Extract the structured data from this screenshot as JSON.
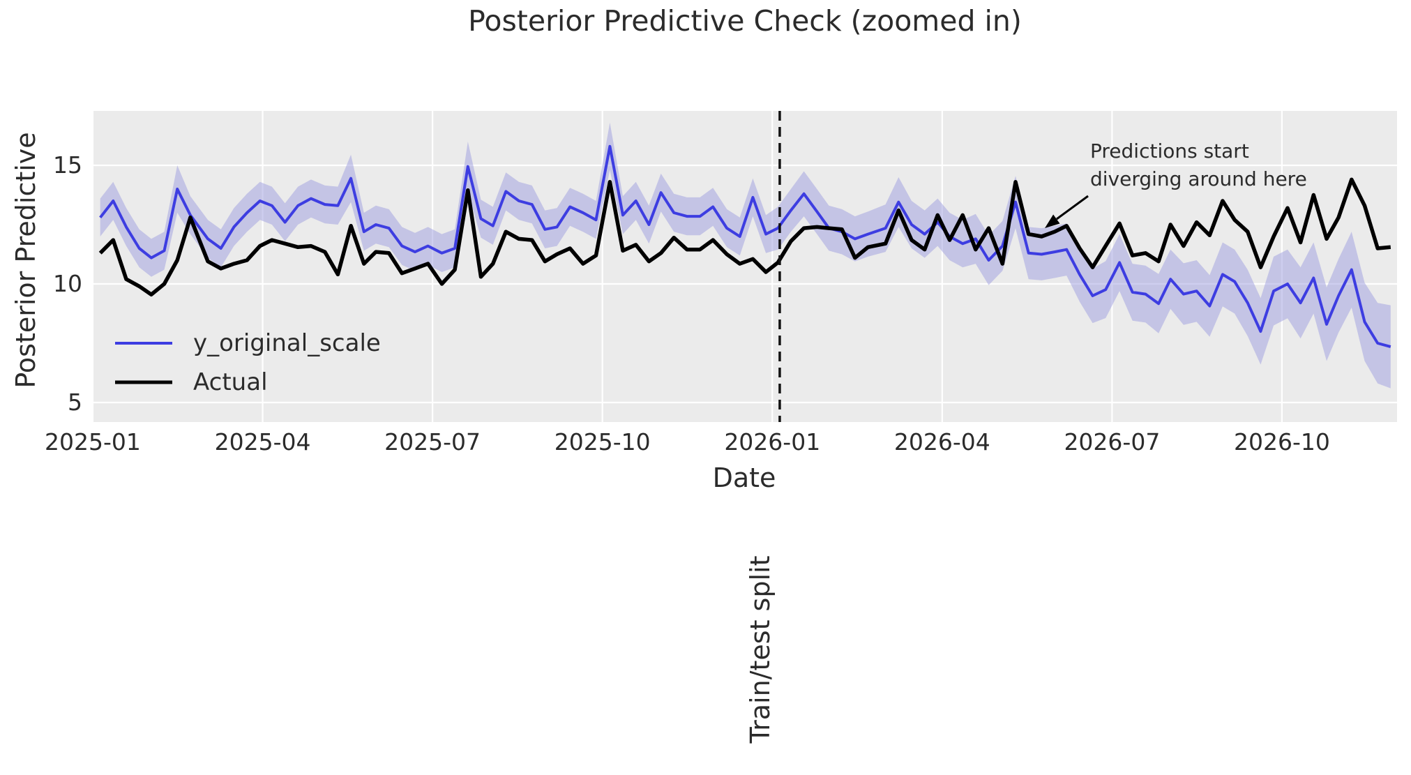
{
  "title": "Posterior Predictive Check (zoomed in)",
  "axes": {
    "xlabel": "Date",
    "ylabel": "Posterior Predictive"
  },
  "legend": {
    "items": [
      {
        "label": "y_original_scale",
        "color": "#3d3de1"
      },
      {
        "label": "Actual",
        "color": "#000000"
      }
    ]
  },
  "annotation": {
    "line1": "Predictions start",
    "line2": "diverging around here"
  },
  "split": {
    "label": "Train/test split",
    "date": "2026-01-05"
  },
  "colors": {
    "plot_background": "#ebebeb",
    "grid": "#ffffff",
    "band_fill": "#9e9ee0",
    "band_opacity": 0.5,
    "blue_line": "#3d3de1",
    "black_line": "#000000",
    "split_line": "#111111",
    "text": "#2b2b2b"
  },
  "chart_data": {
    "type": "line",
    "title": "Posterior Predictive Check (zoomed in)",
    "xlabel": "Date",
    "ylabel": "Posterior Predictive",
    "x_tick_labels": [
      "2025-01",
      "2025-04",
      "2025-07",
      "2025-10",
      "2026-01",
      "2026-04",
      "2026-07",
      "2026-10"
    ],
    "y_ticks": [
      5,
      10,
      15
    ],
    "ylim": [
      4.2,
      17.3
    ],
    "xlim": [
      "2025-01-01",
      "2026-12-02"
    ],
    "grid": true,
    "legend_position": "lower-left",
    "split_date": "2026-01-05",
    "dates": [
      "2025-01-05",
      "2025-01-12",
      "2025-01-19",
      "2025-01-26",
      "2025-02-02",
      "2025-02-09",
      "2025-02-16",
      "2025-02-23",
      "2025-03-02",
      "2025-03-09",
      "2025-03-16",
      "2025-03-23",
      "2025-03-30",
      "2025-04-06",
      "2025-04-13",
      "2025-04-20",
      "2025-04-27",
      "2025-05-04",
      "2025-05-11",
      "2025-05-18",
      "2025-05-25",
      "2025-06-01",
      "2025-06-08",
      "2025-06-15",
      "2025-06-22",
      "2025-06-29",
      "2025-07-06",
      "2025-07-13",
      "2025-07-20",
      "2025-07-27",
      "2025-08-03",
      "2025-08-10",
      "2025-08-17",
      "2025-08-24",
      "2025-08-31",
      "2025-09-07",
      "2025-09-14",
      "2025-09-21",
      "2025-09-28",
      "2025-10-05",
      "2025-10-12",
      "2025-10-19",
      "2025-10-26",
      "2025-11-02",
      "2025-11-09",
      "2025-11-16",
      "2025-11-23",
      "2025-11-30",
      "2025-12-07",
      "2025-12-14",
      "2025-12-21",
      "2025-12-28",
      "2026-01-04",
      "2026-01-11",
      "2026-01-18",
      "2026-01-25",
      "2026-02-01",
      "2026-02-08",
      "2026-02-15",
      "2026-02-22",
      "2026-03-01",
      "2026-03-08",
      "2026-03-15",
      "2026-03-22",
      "2026-03-29",
      "2026-04-05",
      "2026-04-12",
      "2026-04-19",
      "2026-04-26",
      "2026-05-03",
      "2026-05-10",
      "2026-05-17",
      "2026-05-24",
      "2026-05-31",
      "2026-06-07",
      "2026-06-14",
      "2026-06-21",
      "2026-06-28",
      "2026-07-05",
      "2026-07-12",
      "2026-07-19",
      "2026-07-26",
      "2026-08-02",
      "2026-08-09",
      "2026-08-16",
      "2026-08-23",
      "2026-08-30",
      "2026-09-06",
      "2026-09-13",
      "2026-09-20",
      "2026-09-27",
      "2026-10-04",
      "2026-10-11",
      "2026-10-18",
      "2026-10-25",
      "2026-11-01",
      "2026-11-08",
      "2026-11-15",
      "2026-11-22",
      "2026-11-29"
    ],
    "series": [
      {
        "name": "y_original_scale",
        "color": "#3d3de1",
        "values": [
          12.8,
          13.5,
          12.4,
          11.5,
          11.1,
          11.4,
          14.0,
          12.9,
          11.9,
          11.5,
          12.4,
          13.0,
          13.5,
          13.3,
          12.6,
          13.3,
          13.6,
          13.35,
          13.3,
          14.45,
          12.2,
          12.5,
          12.35,
          11.6,
          11.35,
          11.6,
          11.3,
          11.5,
          14.95,
          12.75,
          12.45,
          13.9,
          13.5,
          13.35,
          12.3,
          12.4,
          13.25,
          13.0,
          12.7,
          15.8,
          12.9,
          13.5,
          12.5,
          13.85,
          13.0,
          12.85,
          12.85,
          13.25,
          12.35,
          12.0,
          13.65,
          12.1,
          12.35,
          13.1,
          13.8,
          13.05,
          12.35,
          12.2,
          11.9,
          12.1,
          12.35,
          13.45,
          12.5,
          12.1,
          12.6,
          12.0,
          11.7,
          11.9,
          11.0,
          11.6,
          13.45,
          11.3,
          11.25,
          11.35,
          11.45,
          10.4,
          9.5,
          9.76,
          10.9,
          9.65,
          9.57,
          9.17,
          10.2,
          9.57,
          9.7,
          9.07,
          10.4,
          10.1,
          9.2,
          8.0,
          9.7,
          10.0,
          9.2,
          10.25,
          8.3,
          9.5,
          10.6,
          8.4,
          7.5,
          7.35
        ],
        "band_halfwidth": [
          0.8,
          0.8,
          0.8,
          0.8,
          0.8,
          0.8,
          1.0,
          0.8,
          0.8,
          0.8,
          0.8,
          0.8,
          0.8,
          0.8,
          0.8,
          0.8,
          0.8,
          0.8,
          0.8,
          1.0,
          0.8,
          0.8,
          0.8,
          0.8,
          0.8,
          0.8,
          0.8,
          0.8,
          1.05,
          0.8,
          0.8,
          0.8,
          0.8,
          0.8,
          0.8,
          0.8,
          0.8,
          0.8,
          0.8,
          1.0,
          0.8,
          0.8,
          0.8,
          0.8,
          0.8,
          0.8,
          0.8,
          0.8,
          0.8,
          0.8,
          0.8,
          0.8,
          0.9,
          0.9,
          0.95,
          0.95,
          0.95,
          0.95,
          0.95,
          0.95,
          1.0,
          1.05,
          1.0,
          1.0,
          1.0,
          1.0,
          1.0,
          1.05,
          1.05,
          1.05,
          1.1,
          1.1,
          1.1,
          1.1,
          1.1,
          1.15,
          1.15,
          1.2,
          1.2,
          1.2,
          1.2,
          1.25,
          1.25,
          1.3,
          1.3,
          1.3,
          1.35,
          1.35,
          1.4,
          1.4,
          1.45,
          1.45,
          1.5,
          1.5,
          1.55,
          1.55,
          1.6,
          1.65,
          1.7,
          1.75
        ]
      },
      {
        "name": "Actual",
        "color": "#000000",
        "values": [
          11.3,
          11.85,
          10.2,
          9.9,
          9.55,
          10.0,
          11.0,
          12.8,
          10.95,
          10.65,
          10.85,
          11.0,
          11.6,
          11.85,
          11.7,
          11.55,
          11.6,
          11.35,
          10.4,
          12.45,
          10.85,
          11.35,
          11.3,
          10.45,
          10.65,
          10.85,
          10.0,
          10.6,
          13.95,
          10.3,
          10.85,
          12.2,
          11.9,
          11.85,
          10.95,
          11.25,
          11.5,
          10.85,
          11.2,
          14.3,
          11.4,
          11.65,
          10.95,
          11.3,
          11.95,
          11.45,
          11.45,
          11.85,
          11.25,
          10.85,
          11.05,
          10.5,
          10.9,
          11.8,
          12.35,
          12.4,
          12.35,
          12.3,
          11.1,
          11.55,
          11.7,
          13.1,
          11.85,
          11.45,
          12.9,
          11.85,
          12.9,
          11.45,
          12.35,
          10.85,
          14.3,
          12.1,
          12.0,
          12.2,
          12.45,
          11.5,
          10.7,
          11.6,
          12.55,
          11.2,
          11.3,
          10.95,
          12.5,
          11.6,
          12.6,
          12.05,
          13.5,
          12.7,
          12.2,
          10.7,
          12.0,
          13.2,
          11.75,
          13.75,
          11.9,
          12.8,
          14.4,
          13.3,
          11.5,
          11.55
        ]
      }
    ]
  }
}
